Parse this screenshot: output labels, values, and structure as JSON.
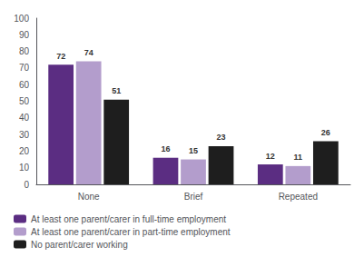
{
  "chart_data": {
    "type": "bar",
    "categories": [
      "None",
      "Brief",
      "Repeated"
    ],
    "series": [
      {
        "name": "At least one parent/carer in full-time employment",
        "color": "#5b2d82",
        "values": [
          72,
          16,
          12
        ]
      },
      {
        "name": "At least one parent/carer in part-time employment",
        "color": "#b39dcc",
        "values": [
          74,
          15,
          11
        ]
      },
      {
        "name": "No parent/carer working",
        "color": "#1e1e1e",
        "values": [
          51,
          23,
          26
        ]
      }
    ],
    "ylim": [
      0,
      100
    ],
    "yticks": [
      0,
      10,
      20,
      30,
      40,
      50,
      60,
      70,
      80,
      90,
      100
    ],
    "grid": false,
    "legend": "bottom",
    "data_labels": true
  }
}
